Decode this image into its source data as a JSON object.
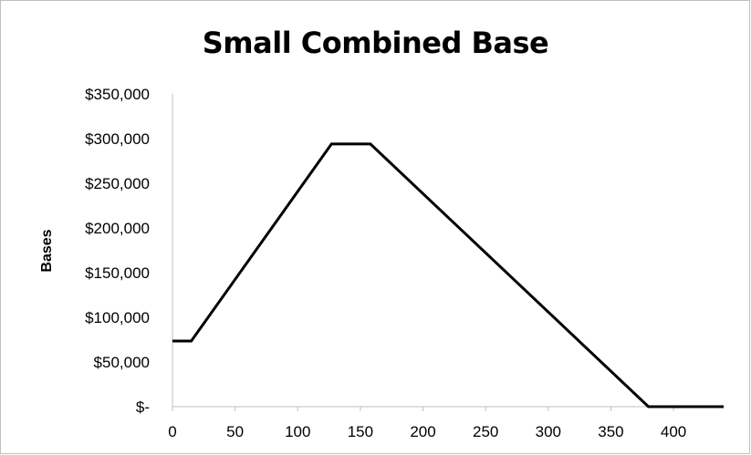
{
  "chart_data": {
    "type": "line",
    "title": "Small Combined Base",
    "xlabel": "",
    "ylabel": "Bases",
    "xlim": [
      0,
      440
    ],
    "ylim": [
      0,
      350000
    ],
    "x_ticks": [
      0,
      50,
      100,
      150,
      200,
      250,
      300,
      350,
      400
    ],
    "x_tick_labels": [
      "0",
      "50",
      "100",
      "150",
      "200",
      "250",
      "300",
      "350",
      "400"
    ],
    "y_ticks": [
      0,
      50000,
      100000,
      150000,
      200000,
      250000,
      300000,
      350000
    ],
    "y_tick_labels": [
      "$-",
      "$50,000",
      "$100,000",
      "$150,000",
      "$200,000",
      "$250,000",
      "$300,000",
      "$350,000"
    ],
    "grid": false,
    "legend": "none",
    "series": [
      {
        "x": [
          0,
          15,
          127,
          158,
          380,
          440
        ],
        "y": [
          73500,
          73500,
          294000,
          294000,
          0,
          0
        ]
      }
    ]
  },
  "colors": {
    "line": "#000000",
    "axis": "#bfbfbf",
    "frame": "#bfbfbf"
  }
}
